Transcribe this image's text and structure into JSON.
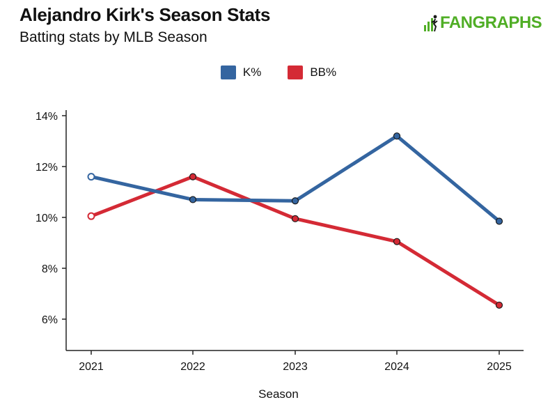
{
  "header": {
    "title": "Alejandro Kirk's Season Stats",
    "subtitle": "Batting stats by MLB Season"
  },
  "logo": {
    "text": "FANGRAPHS",
    "color": "#50ae26",
    "icon": "fangraphs-bars-icon"
  },
  "chart_data": {
    "type": "line",
    "x": [
      2021,
      2022,
      2023,
      2024,
      2025
    ],
    "xlabel": "Season",
    "ylabel": "",
    "ylim": [
      4.8,
      14
    ],
    "yticks": [
      6,
      8,
      10,
      12,
      14
    ],
    "ytick_labels": [
      "6%",
      "8%",
      "10%",
      "12%",
      "14%"
    ],
    "xtick_labels": [
      "2021",
      "2022",
      "2023",
      "2024",
      "2025"
    ],
    "grid": false,
    "legend_position": "top-center",
    "series": [
      {
        "name": "K%",
        "color": "#3465a0",
        "values": [
          11.6,
          10.7,
          10.65,
          13.2,
          9.85
        ],
        "hollow_first": true
      },
      {
        "name": "BB%",
        "color": "#d42a35",
        "values": [
          10.05,
          11.6,
          9.95,
          9.05,
          6.55
        ],
        "hollow_first": true
      }
    ]
  }
}
